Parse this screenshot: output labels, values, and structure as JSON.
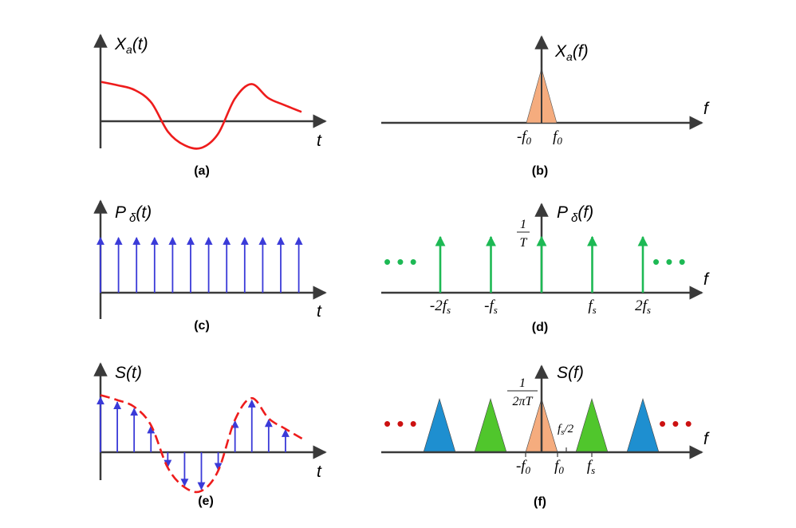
{
  "colors": {
    "axis": "#3a3a3a",
    "signal": "#ee1c1c",
    "impulse_time": "#3a3ad8",
    "impulse_freq": "#1db954",
    "spectrum_center": "#f5ac7e",
    "spectrum_green": "#50c62c",
    "spectrum_blue": "#1e8fd0",
    "dots_green": "#1db954",
    "dots_red": "#cc1111"
  },
  "panels": {
    "a": {
      "caption": "(a)",
      "ylabel": "X",
      "ylabel_sub": "a",
      "ylabel_arg": "(t)",
      "xlabel": "t",
      "samples": [
        0.93,
        0.85,
        0.74,
        0.44,
        -0.25,
        -0.57,
        -0.63,
        -0.3,
        0.53,
        0.88,
        0.55,
        0.38,
        0.22
      ]
    },
    "b": {
      "caption": "(b)",
      "ylabel": "X",
      "ylabel_sub": "a",
      "ylabel_arg": "(f)",
      "xlabel": "f",
      "left_label": "-f",
      "left_sub": "0",
      "right_label": "f",
      "right_sub": "0"
    },
    "c": {
      "caption": "(c)",
      "ylabel": "P",
      "ylabel_mid": "δ",
      "ylabel_arg": "(t)",
      "xlabel": "t",
      "impulse_count": 12
    },
    "d": {
      "caption": "(d)",
      "ylabel": "P",
      "ylabel_mid": "δ",
      "ylabel_arg": "(f)",
      "xlabel": "f",
      "height_num": "1",
      "height_den": "T",
      "ticks": [
        {
          "label": "-2f",
          "sub": "s",
          "k": -2
        },
        {
          "label": "-f",
          "sub": "s",
          "k": -1
        },
        {
          "label": "f",
          "sub": "s",
          "k": 1
        },
        {
          "label": "2f",
          "sub": "s",
          "k": 2
        }
      ],
      "dots": "• • •"
    },
    "e": {
      "caption": "(e)",
      "ylabel": "S(t)",
      "xlabel": "t"
    },
    "f": {
      "caption": "(f)",
      "ylabel": "S(f)",
      "xlabel": "f",
      "height_num": "1",
      "height_den": "2πT",
      "half_label": "f",
      "half_sub": "s",
      "half_tail": "/2",
      "left_label": "-f",
      "left_sub": "0",
      "center_label": "f",
      "center_sub": "0",
      "fs_label": "f",
      "fs_sub": "s"
    }
  }
}
